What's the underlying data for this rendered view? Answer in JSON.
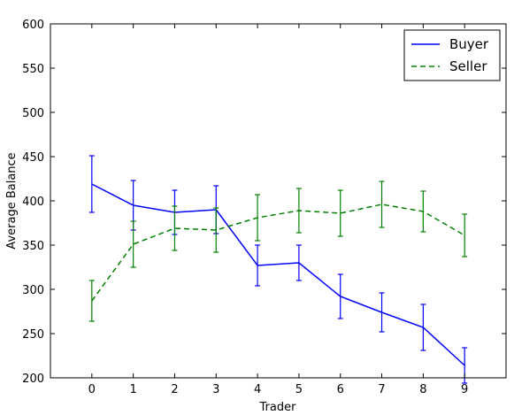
{
  "chart_data": {
    "type": "line",
    "title": "",
    "xlabel": "Trader",
    "ylabel": "Average Balance",
    "x": [
      0,
      1,
      2,
      3,
      4,
      5,
      6,
      7,
      8,
      9
    ],
    "xlim": [
      -1,
      10
    ],
    "ylim": [
      200,
      600
    ],
    "xticks": [
      0,
      1,
      2,
      3,
      4,
      5,
      6,
      7,
      8,
      9
    ],
    "yticks": [
      200,
      250,
      300,
      350,
      400,
      450,
      500,
      550,
      600
    ],
    "grid": false,
    "legend_position": "top-right",
    "series": [
      {
        "name": "Buyer",
        "color": "#0000ff",
        "line_style": "solid",
        "values": [
          419,
          395,
          387,
          390,
          327,
          330,
          292,
          274,
          257,
          214
        ],
        "error": [
          32,
          28,
          25,
          27,
          23,
          20,
          25,
          22,
          26,
          20
        ]
      },
      {
        "name": "Seller",
        "color": "#008000",
        "line_style": "dashed",
        "values": [
          287,
          351,
          369,
          367,
          381,
          389,
          386,
          396,
          388,
          361
        ],
        "error": [
          23,
          26,
          25,
          25,
          26,
          25,
          26,
          26,
          23,
          24
        ]
      }
    ]
  }
}
